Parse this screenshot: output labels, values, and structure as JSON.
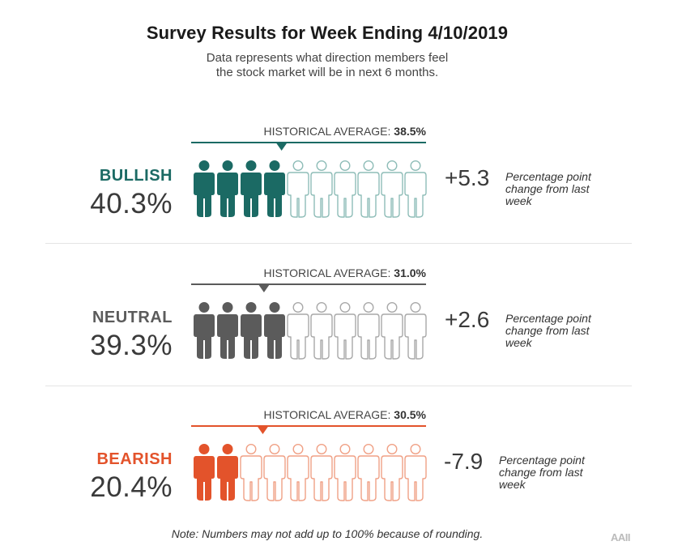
{
  "header": {
    "title": "Survey Results for Week Ending 4/10/2019",
    "subtitle": "Data represents what direction members feel the stock market will be in next 6 months."
  },
  "chart_data": {
    "type": "pictograph",
    "title": "Survey Results for Week Ending 4/10/2019",
    "subtitle": "Data represents what direction members feel the stock market will be in next 6 months.",
    "figures_per_row": 10,
    "historical_label": "HISTORICAL AVERAGE:",
    "change_note": "Percentage point change from last week",
    "categories": [
      {
        "name": "BULLISH",
        "value": 40.3,
        "value_label": "40.3%",
        "filled_figures": 4,
        "historical_average": 38.5,
        "historical_average_label": "38.5%",
        "change": 5.3,
        "change_label": "+5.3",
        "color": "#1b6a64",
        "outline_color": "#8fbdb8"
      },
      {
        "name": "NEUTRAL",
        "value": 39.3,
        "value_label": "39.3%",
        "filled_figures": 4,
        "historical_average": 31.0,
        "historical_average_label": "31.0%",
        "change": 2.6,
        "change_label": "+2.6",
        "color": "#5b5b5b",
        "outline_color": "#a9a9a9"
      },
      {
        "name": "BEARISH",
        "value": 20.4,
        "value_label": "20.4%",
        "filled_figures": 2,
        "historical_average": 30.5,
        "historical_average_label": "30.5%",
        "change": -7.9,
        "change_label": "-7.9",
        "color": "#e3532b",
        "outline_color": "#f0a186"
      }
    ]
  },
  "footer": {
    "note": "Note: Numbers may not add up to 100% because of rounding.",
    "logo_text": "AAII"
  }
}
